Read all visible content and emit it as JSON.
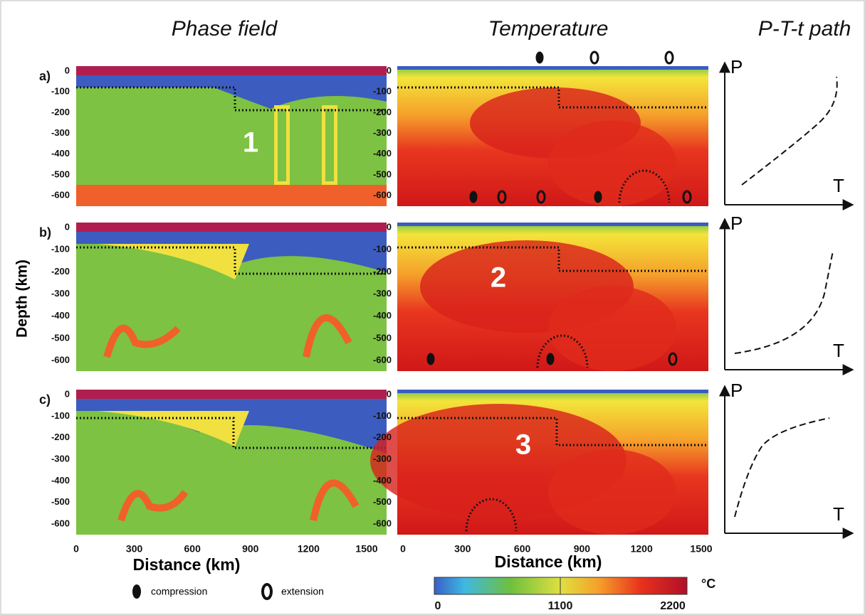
{
  "columns": [
    "Phase field",
    "Temperature",
    "P-T-t path"
  ],
  "rows": [
    {
      "label": "a)",
      "number": "1"
    },
    {
      "label": "b)",
      "number": "2"
    },
    {
      "label": "c)",
      "number": "3"
    }
  ],
  "depth_ticks": [
    "0",
    "-100",
    "-200",
    "-300",
    "-400",
    "-500",
    "-600"
  ],
  "distance_ticks": [
    "0",
    "300",
    "600",
    "900",
    "1200",
    "1500"
  ],
  "depth_label": "Depth  (km)",
  "distance_label": "Distance  (km)",
  "pt_axes": {
    "p": "P",
    "t": "T"
  },
  "legend": {
    "compression": "compression",
    "extension": "extension"
  },
  "colorbar": {
    "unit": "°C",
    "ticks": [
      "0",
      "1100",
      "2200"
    ]
  }
}
